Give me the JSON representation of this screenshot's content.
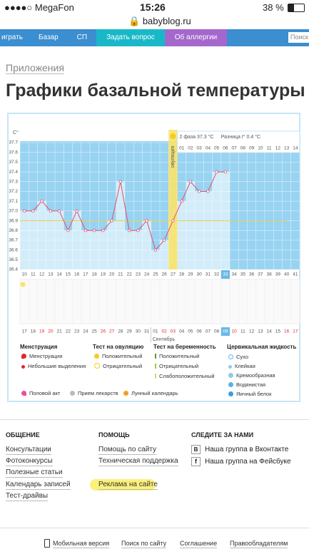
{
  "status": {
    "carrier": "MegaFon",
    "time": "15:26",
    "battery": "38 %"
  },
  "url": "babyblog.ru",
  "nav": {
    "items": [
      "играть",
      "Базар",
      "СП",
      "Задать вопрос",
      "Об аллергии"
    ],
    "search": "Поиск"
  },
  "breadcrumb": "Приложения",
  "title": "Графики базальной температуры",
  "chart_data": {
    "type": "line",
    "y_label": "C°",
    "x": [
      10,
      11,
      12,
      13,
      14,
      15,
      16,
      17,
      18,
      19,
      20,
      21,
      22,
      23,
      24,
      25,
      26,
      27,
      28,
      29,
      30,
      31,
      32,
      33,
      34,
      35,
      36,
      37,
      38,
      39,
      40,
      41
    ],
    "values": [
      37.0,
      37.0,
      37.1,
      37.0,
      37.0,
      36.8,
      37.0,
      36.8,
      36.8,
      36.8,
      36.9,
      37.3,
      36.8,
      36.8,
      36.9,
      36.6,
      36.7,
      36.9,
      37.1,
      37.3,
      37.2,
      37.2,
      37.4,
      37.4,
      null,
      null,
      null,
      null,
      null,
      null,
      null,
      null
    ],
    "dates": [
      "17",
      "18",
      "19",
      "20",
      "21",
      "22",
      "23",
      "24",
      "25",
      "26",
      "27",
      "28",
      "29",
      "30",
      "31",
      "01",
      "02",
      "03",
      "04",
      "05",
      "06",
      "07",
      "08",
      "09",
      "10",
      "11",
      "12",
      "13",
      "14",
      "15",
      "16",
      "17"
    ],
    "month_label": "Сентябрь",
    "weekends": [
      12,
      13,
      19,
      20,
      26,
      27,
      33,
      34,
      40,
      41
    ],
    "weekend_color": "#e0282e",
    "today": 33,
    "ovulation_day": 27,
    "ovulation_label": "овуляция",
    "phase2_days": [
      "01",
      "02",
      "03",
      "04",
      "05",
      "06",
      "07",
      "08",
      "09",
      "10",
      "11",
      "12",
      "13",
      "14"
    ],
    "phase2_label": "2 фаза 37.3 °C",
    "difference_label": "Разница t° 0.4 °C",
    "cover_line": 36.9,
    "color": "#e4506e",
    "bar_color": "#d3ecf9",
    "background_color": "#98d3f1",
    "ylim": [
      36.4,
      37.7
    ],
    "yticks": [
      37.7,
      37.6,
      37.5,
      37.4,
      37.3,
      37.2,
      37.1,
      {
        "value": 37.0,
        "label": "37.0"
      },
      36.9,
      36.8,
      36.7,
      36.6,
      36.5,
      36.4
    ],
    "grid": true
  },
  "legend": {
    "menstruation": {
      "title": "Менструация",
      "items": [
        "Менструация",
        "Небольшие выделения"
      ]
    },
    "ovulation_test": {
      "title": "Тест на овуляцию",
      "items": [
        "Положительный",
        "Отрицательный"
      ]
    },
    "pregnancy_test": {
      "title": "Тест на беременность",
      "items": [
        "Положительный",
        "Отрицательный",
        "Слабоположительный"
      ]
    },
    "cervical": {
      "title": "Цервикальная жидкость",
      "items": [
        "Сухо",
        "Клейкая",
        "Кремообразная",
        "Водянистая",
        "Яичный белок"
      ]
    },
    "extra": [
      "Половой акт",
      "Прием лекарств",
      "Лунный календарь"
    ]
  },
  "footer": {
    "communication": {
      "title": "ОБЩЕНИЕ",
      "links": [
        "Консультации",
        "Фотоконкурсы",
        "Полезные статьи",
        "Календарь записей",
        "Тест-драйвы"
      ]
    },
    "help": {
      "title": "ПОМОЩЬ",
      "links": [
        "Помощь по сайту",
        "Техническая поддержка",
        "Реклама на сайте"
      ]
    },
    "follow": {
      "title": "СЛЕДИТЕ ЗА НАМИ",
      "links": [
        "Наша группа в Вконтакте",
        "Наша группа на Фейсбуке"
      ]
    },
    "bottom": [
      "Мобильная версия",
      "Поиск по сайту",
      "Соглашение",
      "Правообладателям"
    ]
  }
}
